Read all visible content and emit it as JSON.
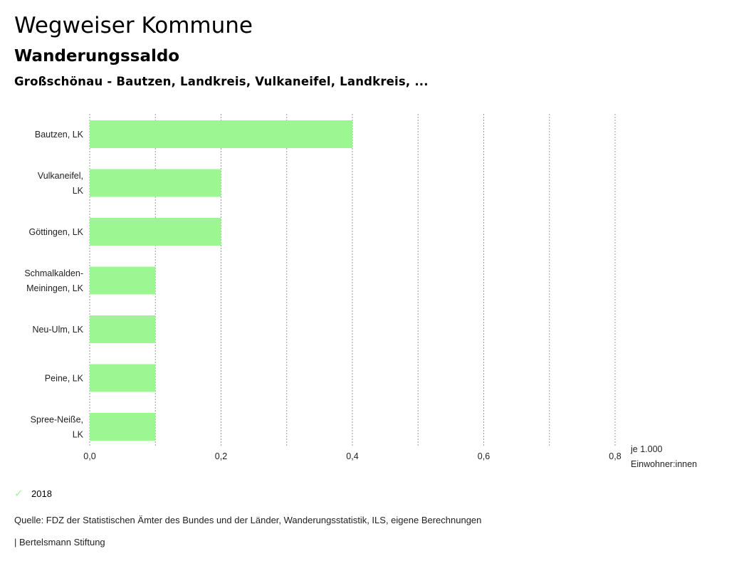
{
  "header": {
    "title": "Wegweiser Kommune",
    "subtitle": "Wanderungssaldo",
    "region": "Großschönau - Bautzen, Landkreis, Vulkaneifel, Landkreis, ..."
  },
  "chart_data": {
    "type": "bar",
    "orientation": "horizontal",
    "categories": [
      [
        "Bautzen, LK"
      ],
      [
        "Vulkaneifel,",
        "LK"
      ],
      [
        "Göttingen, LK"
      ],
      [
        "Schmalkalden-",
        "Meiningen, LK"
      ],
      [
        "Neu-Ulm, LK"
      ],
      [
        "Peine, LK"
      ],
      [
        "Spree-Neiße,",
        "LK"
      ]
    ],
    "series": [
      {
        "name": "2018",
        "values": [
          0.4,
          0.2,
          0.2,
          0.1,
          0.1,
          0.1,
          0.1
        ]
      }
    ],
    "xlim": [
      0,
      0.8
    ],
    "xticks": [
      0.0,
      0.2,
      0.4,
      0.6,
      0.8
    ],
    "xtick_labels": [
      "0,0",
      "0,2",
      "0,4",
      "0,6",
      "0,8"
    ],
    "xlabel": [
      "je 1.000",
      "Einwohner:innen"
    ],
    "grid": "vertical dotted",
    "bar_color": "#9cf792"
  },
  "legend": {
    "label": "2018",
    "color": "#9cf792"
  },
  "footer": {
    "source": "Quelle: FDZ der Statistischen Ämter des Bundes und der Länder, Wanderungsstatistik, ILS, eigene Berechnungen",
    "publisher": "| Bertelsmann Stiftung"
  }
}
